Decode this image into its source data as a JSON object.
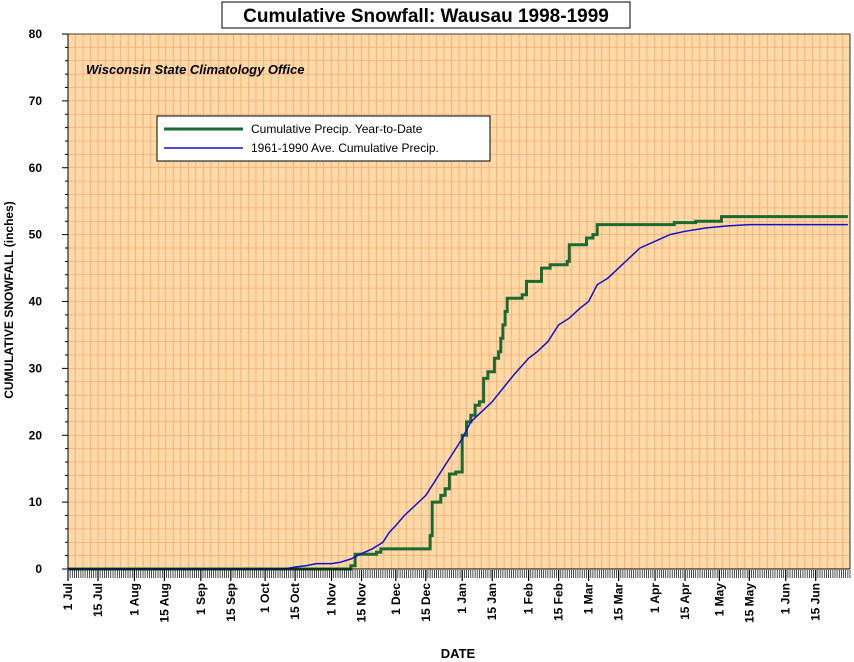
{
  "chart_data": {
    "type": "line",
    "title": "Cumulative Snowfall: Wausau 1998-1999",
    "annotation": "Wisconsin State Climatology Office",
    "xlabel": "DATE",
    "ylabel": "CUMULATIVE SNOWFALL (inches)",
    "ylim": [
      0,
      80
    ],
    "yticks": [
      0,
      10,
      20,
      30,
      40,
      50,
      60,
      70,
      80
    ],
    "xlim": [
      "1998-07-01",
      "1999-06-30"
    ],
    "xticks": [
      {
        "date": "1998-07-01",
        "label": "1 Jul"
      },
      {
        "date": "1998-07-15",
        "label": "15 Jul"
      },
      {
        "date": "1998-08-01",
        "label": "1 Aug"
      },
      {
        "date": "1998-08-15",
        "label": "15 Aug"
      },
      {
        "date": "1998-09-01",
        "label": "1 Sep"
      },
      {
        "date": "1998-09-15",
        "label": "15 Sep"
      },
      {
        "date": "1998-10-01",
        "label": "1 Oct"
      },
      {
        "date": "1998-10-15",
        "label": "15 Oct"
      },
      {
        "date": "1998-11-01",
        "label": "1 Nov"
      },
      {
        "date": "1998-11-15",
        "label": "15 Nov"
      },
      {
        "date": "1998-12-01",
        "label": "1 Dec"
      },
      {
        "date": "1998-12-15",
        "label": "15 Dec"
      },
      {
        "date": "1999-01-01",
        "label": "1 Jan"
      },
      {
        "date": "1999-01-15",
        "label": "15 Jan"
      },
      {
        "date": "1999-02-01",
        "label": "1 Feb"
      },
      {
        "date": "1999-02-15",
        "label": "15 Feb"
      },
      {
        "date": "1999-03-01",
        "label": "1 Mar"
      },
      {
        "date": "1999-03-15",
        "label": "15 Mar"
      },
      {
        "date": "1999-04-01",
        "label": "1 Apr"
      },
      {
        "date": "1999-04-15",
        "label": "15 Apr"
      },
      {
        "date": "1999-05-01",
        "label": "1 May"
      },
      {
        "date": "1999-05-15",
        "label": "15 May"
      },
      {
        "date": "1999-06-01",
        "label": "1 Jun"
      },
      {
        "date": "1999-06-15",
        "label": "15 Jun"
      }
    ],
    "grid": true,
    "legend_position": "upper-left",
    "colors": {
      "background": "#ffd9a6",
      "grid": "#ff9966",
      "series_year": "#1a6b32",
      "series_avg": "#1010cc"
    },
    "series": [
      {
        "name": "Cumulative Precip. Year-to-Date",
        "color": "#1a6b32",
        "step": true,
        "points": [
          [
            "1998-07-01",
            0
          ],
          [
            "1998-11-08",
            0
          ],
          [
            "1998-11-10",
            0.5
          ],
          [
            "1998-11-12",
            2.2
          ],
          [
            "1998-11-22",
            2.5
          ],
          [
            "1998-11-24",
            3.0
          ],
          [
            "1998-12-15",
            3.0
          ],
          [
            "1998-12-17",
            5.0
          ],
          [
            "1998-12-18",
            10.0
          ],
          [
            "1998-12-22",
            11.0
          ],
          [
            "1998-12-24",
            12.0
          ],
          [
            "1998-12-26",
            14.2
          ],
          [
            "1998-12-29",
            14.5
          ],
          [
            "1999-01-01",
            20.0
          ],
          [
            "1999-01-03",
            22.0
          ],
          [
            "1999-01-05",
            23.0
          ],
          [
            "1999-01-07",
            24.5
          ],
          [
            "1999-01-09",
            25.0
          ],
          [
            "1999-01-11",
            28.5
          ],
          [
            "1999-01-13",
            29.5
          ],
          [
            "1999-01-16",
            31.5
          ],
          [
            "1999-01-18",
            32.5
          ],
          [
            "1999-01-19",
            34.5
          ],
          [
            "1999-01-20",
            36.5
          ],
          [
            "1999-01-21",
            38.5
          ],
          [
            "1999-01-22",
            40.5
          ],
          [
            "1999-01-29",
            41.0
          ],
          [
            "1999-01-31",
            43.0
          ],
          [
            "1999-02-07",
            45.0
          ],
          [
            "1999-02-11",
            45.5
          ],
          [
            "1999-02-19",
            46.0
          ],
          [
            "1999-02-20",
            48.5
          ],
          [
            "1999-02-28",
            49.5
          ],
          [
            "1999-03-03",
            50.0
          ],
          [
            "1999-03-05",
            51.5
          ],
          [
            "1999-04-08",
            51.5
          ],
          [
            "1999-04-10",
            51.8
          ],
          [
            "1999-04-20",
            52.0
          ],
          [
            "1999-05-02",
            52.7
          ],
          [
            "1999-06-30",
            52.7
          ]
        ]
      },
      {
        "name": "1961-1990 Ave. Cumulative Precip.",
        "color": "#1010cc",
        "step": false,
        "points": [
          [
            "1998-07-01",
            0
          ],
          [
            "1998-10-10",
            0
          ],
          [
            "1998-10-15",
            0.3
          ],
          [
            "1998-10-20",
            0.5
          ],
          [
            "1998-10-25",
            0.8
          ],
          [
            "1998-11-01",
            0.8
          ],
          [
            "1998-11-05",
            1.0
          ],
          [
            "1998-11-10",
            1.5
          ],
          [
            "1998-11-15",
            2.3
          ],
          [
            "1998-11-20",
            3.0
          ],
          [
            "1998-11-25",
            4.0
          ],
          [
            "1998-11-28",
            5.5
          ],
          [
            "1998-12-01",
            6.5
          ],
          [
            "1998-12-05",
            8.0
          ],
          [
            "1998-12-10",
            9.5
          ],
          [
            "1998-12-15",
            11.0
          ],
          [
            "1998-12-20",
            13.5
          ],
          [
            "1998-12-25",
            16.0
          ],
          [
            "1999-01-01",
            19.5
          ],
          [
            "1999-01-05",
            22.0
          ],
          [
            "1999-01-10",
            23.5
          ],
          [
            "1999-01-15",
            25.0
          ],
          [
            "1999-01-20",
            27.0
          ],
          [
            "1999-01-25",
            29.0
          ],
          [
            "1999-02-01",
            31.5
          ],
          [
            "1999-02-05",
            32.5
          ],
          [
            "1999-02-10",
            34.0
          ],
          [
            "1999-02-15",
            36.5
          ],
          [
            "1999-02-20",
            37.5
          ],
          [
            "1999-02-25",
            39.0
          ],
          [
            "1999-03-01",
            40.0
          ],
          [
            "1999-03-05",
            42.5
          ],
          [
            "1999-03-10",
            43.5
          ],
          [
            "1999-03-15",
            45.0
          ],
          [
            "1999-03-20",
            46.5
          ],
          [
            "1999-03-25",
            48.0
          ],
          [
            "1999-04-01",
            49.0
          ],
          [
            "1999-04-08",
            50.0
          ],
          [
            "1999-04-15",
            50.5
          ],
          [
            "1999-04-25",
            51.0
          ],
          [
            "1999-05-05",
            51.3
          ],
          [
            "1999-05-15",
            51.5
          ],
          [
            "1999-06-30",
            51.5
          ]
        ]
      }
    ]
  }
}
